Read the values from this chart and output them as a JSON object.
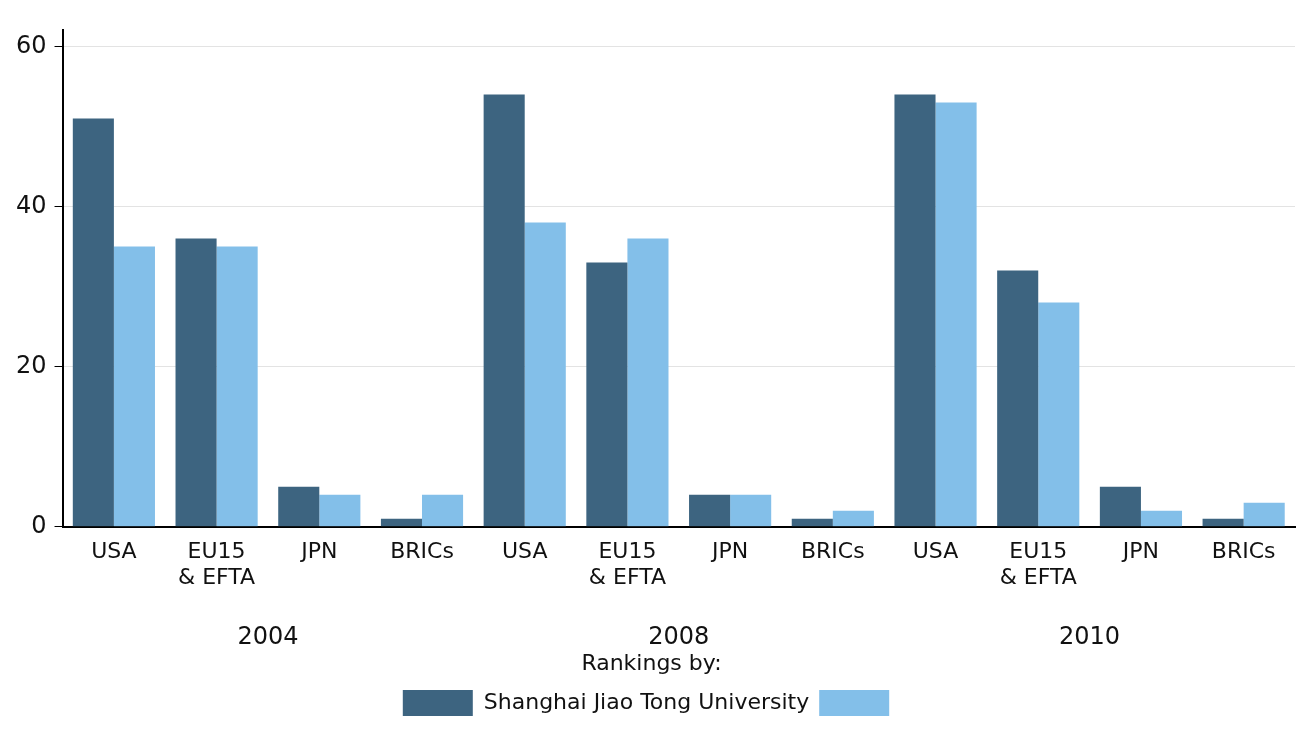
{
  "chart_data": {
    "type": "bar",
    "legend_title": "Rankings by:",
    "categories": [
      "USA",
      "EU15 & EFTA",
      "JPN",
      "BRICs",
      "USA",
      "EU15 & EFTA",
      "JPN",
      "BRICs",
      "USA",
      "EU15 & EFTA",
      "JPN",
      "BRICs"
    ],
    "series": [
      {
        "name": "Shanghai Jiao Tong University",
        "color": "#3d6480",
        "values": [
          51,
          36,
          5,
          1,
          54,
          33,
          4,
          1,
          54,
          32,
          5,
          1
        ]
      },
      {
        "color": "#83bfe9",
        "values": [
          35,
          35,
          4,
          4,
          38,
          36,
          4,
          2,
          53,
          28,
          2,
          3
        ]
      }
    ],
    "annotations": [
      "2004",
      "2008",
      "2010"
    ],
    "ylim": [
      0,
      62
    ],
    "yticks": [
      0,
      20,
      40,
      60
    ],
    "grid": "y",
    "legend": "bottom"
  }
}
